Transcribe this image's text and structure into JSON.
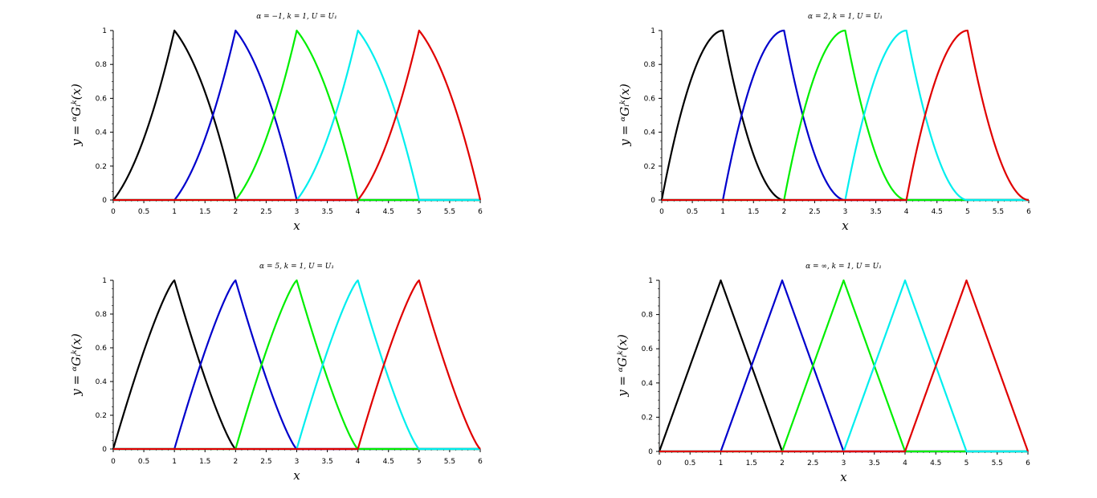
{
  "chart_data": [
    {
      "type": "line",
      "title": "α = −1, k = 1, U = U₁",
      "xlabel": "x",
      "ylabel": "y = ᵅGᵢᵏ(x)",
      "xlim": [
        0,
        6
      ],
      "ylim": [
        0,
        1
      ],
      "xticks": [
        "0",
        "0.5",
        "1",
        "1.5",
        "2",
        "2.5",
        "3",
        "3.5",
        "4",
        "4.5",
        "5",
        "5.5",
        "6"
      ],
      "yticks": [
        "0",
        "0.2",
        "0.4",
        "0.6",
        "0.8",
        "1"
      ],
      "shape": "convex-rise-concave-fall",
      "grid": false,
      "series": [
        {
          "color": "#000000",
          "peak": 1,
          "support": [
            0,
            2
          ]
        },
        {
          "color": "#0000cc",
          "peak": 2,
          "support": [
            1,
            3
          ]
        },
        {
          "color": "#00ee00",
          "peak": 3,
          "support": [
            2,
            4
          ]
        },
        {
          "color": "#00eeee",
          "peak": 4,
          "support": [
            3,
            5
          ]
        },
        {
          "color": "#e00000",
          "peak": 5,
          "support": [
            4,
            6
          ]
        }
      ]
    },
    {
      "type": "line",
      "title": "α = 2, k = 1, U = U₁",
      "xlabel": "x",
      "ylabel": "y = ᵅGᵢᵏ(x)",
      "xlim": [
        0,
        6
      ],
      "ylim": [
        0,
        1
      ],
      "xticks": [
        "0",
        "0.5",
        "1",
        "1.5",
        "2",
        "2.5",
        "3",
        "3.5",
        "4",
        "4.5",
        "5",
        "5.5",
        "6"
      ],
      "yticks": [
        "0",
        "0.2",
        "0.4",
        "0.6",
        "0.8",
        "1"
      ],
      "shape": "concave-rise-convex-fall",
      "grid": false,
      "series": [
        {
          "color": "#000000",
          "peak": 1,
          "support": [
            0,
            2
          ]
        },
        {
          "color": "#0000cc",
          "peak": 2,
          "support": [
            1,
            3
          ]
        },
        {
          "color": "#00ee00",
          "peak": 3,
          "support": [
            2,
            4
          ]
        },
        {
          "color": "#00eeee",
          "peak": 4,
          "support": [
            3,
            5
          ]
        },
        {
          "color": "#e00000",
          "peak": 5,
          "support": [
            4,
            6
          ]
        }
      ]
    },
    {
      "type": "line",
      "title": "α = 5, k = 1, U = U₁",
      "xlabel": "x",
      "ylabel": "y = ᵅGᵢᵏ(x)",
      "xlim": [
        0,
        6
      ],
      "ylim": [
        0,
        1
      ],
      "xticks": [
        "0",
        "0.5",
        "1",
        "1.5",
        "2",
        "2.5",
        "3",
        "3.5",
        "4",
        "4.5",
        "5",
        "5.5",
        "6"
      ],
      "yticks": [
        "0",
        "0.2",
        "0.4",
        "0.6",
        "0.8",
        "1"
      ],
      "shape": "slightly-concave-rise-slightly-convex-fall",
      "grid": false,
      "series": [
        {
          "color": "#000000",
          "peak": 1,
          "support": [
            0,
            2
          ]
        },
        {
          "color": "#0000cc",
          "peak": 2,
          "support": [
            1,
            3
          ]
        },
        {
          "color": "#00ee00",
          "peak": 3,
          "support": [
            2,
            4
          ]
        },
        {
          "color": "#00eeee",
          "peak": 4,
          "support": [
            3,
            5
          ]
        },
        {
          "color": "#e00000",
          "peak": 5,
          "support": [
            4,
            6
          ]
        }
      ]
    },
    {
      "type": "line",
      "title": "α = ∞, k = 1, U = U₁",
      "xlabel": "x",
      "ylabel": "y = ᵅGᵢᵏ(x)",
      "xlim": [
        0,
        6
      ],
      "ylim": [
        0,
        1
      ],
      "xticks": [
        "0",
        "0.5",
        "1",
        "1.5",
        "2",
        "2.5",
        "3",
        "3.5",
        "4",
        "4.5",
        "5",
        "5.5",
        "6"
      ],
      "yticks": [
        "0",
        "0.2",
        "0.4",
        "0.6",
        "0.8",
        "1"
      ],
      "shape": "linear",
      "grid": false,
      "series": [
        {
          "color": "#000000",
          "peak": 1,
          "support": [
            0,
            2
          ]
        },
        {
          "color": "#0000cc",
          "peak": 2,
          "support": [
            1,
            3
          ]
        },
        {
          "color": "#00ee00",
          "peak": 3,
          "support": [
            2,
            4
          ]
        },
        {
          "color": "#00eeee",
          "peak": 4,
          "support": [
            3,
            5
          ]
        },
        {
          "color": "#e00000",
          "peak": 5,
          "support": [
            4,
            6
          ]
        }
      ]
    }
  ]
}
